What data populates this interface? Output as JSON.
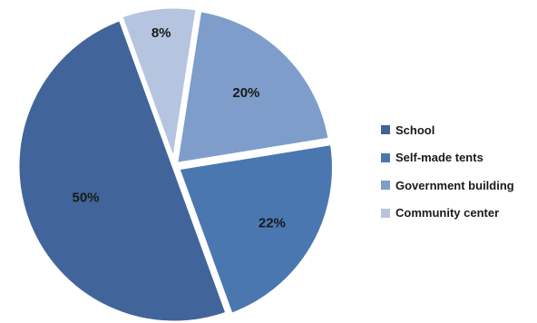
{
  "chart_data": {
    "type": "pie",
    "categories": [
      "School",
      "Self-made tents",
      "Government building",
      "Community center"
    ],
    "values": [
      50,
      22,
      20,
      8
    ],
    "value_labels": [
      "50%",
      "22%",
      "20%",
      "8%"
    ],
    "colors": [
      "#41659a",
      "#4a77b0",
      "#7e9dca",
      "#b5c5e0"
    ],
    "start_angle_deg": 110,
    "direction": "counterclockwise",
    "exploded": true,
    "legend_position": "right",
    "title": ""
  }
}
